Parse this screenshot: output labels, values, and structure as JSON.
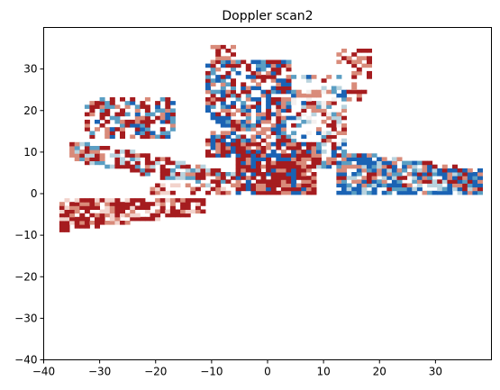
{
  "chart_data": {
    "type": "heatmap",
    "title": "Doppler scan2",
    "xlabel": "",
    "ylabel": "",
    "xlim": [
      -40,
      40
    ],
    "ylim": [
      -40,
      40
    ],
    "x_ticks": [
      -40,
      -30,
      -20,
      -10,
      0,
      10,
      20,
      30
    ],
    "y_ticks": [
      -40,
      -30,
      -20,
      -10,
      0,
      10,
      20,
      30
    ],
    "grid": false,
    "colormap": "diverging red-white-blue (velocity)",
    "colors": {
      "dark_red": "#a51c1f",
      "light_red": "#d98b7a",
      "pale_red": "#f2d3cc",
      "white": "#f4f0ef",
      "pale_blue": "#b9d3de",
      "mid_blue": "#5a9ec3",
      "dark_blue": "#1a63b4"
    },
    "echo_regions": [
      {
        "name": "northwest lobe",
        "x_range": [
          -33,
          -18
        ],
        "y_range": [
          13,
          24
        ],
        "dominant": "dark_red"
      },
      {
        "name": "north sector",
        "x_range": [
          -12,
          4
        ],
        "y_range": [
          8,
          36
        ],
        "dominant": "dark_blue"
      },
      {
        "name": "northeast sector",
        "x_range": [
          4,
          16
        ],
        "y_range": [
          6,
          32
        ],
        "dominant": "pale_blue"
      },
      {
        "name": "central core",
        "x_range": [
          -6,
          6
        ],
        "y_range": [
          0,
          12
        ],
        "dominant": "dark_red"
      },
      {
        "name": "east band",
        "x_range": [
          12,
          37
        ],
        "y_range": [
          0,
          10
        ],
        "dominant": "dark_blue"
      },
      {
        "name": "west band",
        "x_range": [
          -38,
          -20
        ],
        "y_range": [
          -10,
          -2
        ],
        "dominant": "dark_red"
      },
      {
        "name": "southwest arm",
        "x_range": [
          -36,
          -10
        ],
        "y_range": [
          2,
          12
        ],
        "dominant": "dark_red"
      }
    ]
  }
}
